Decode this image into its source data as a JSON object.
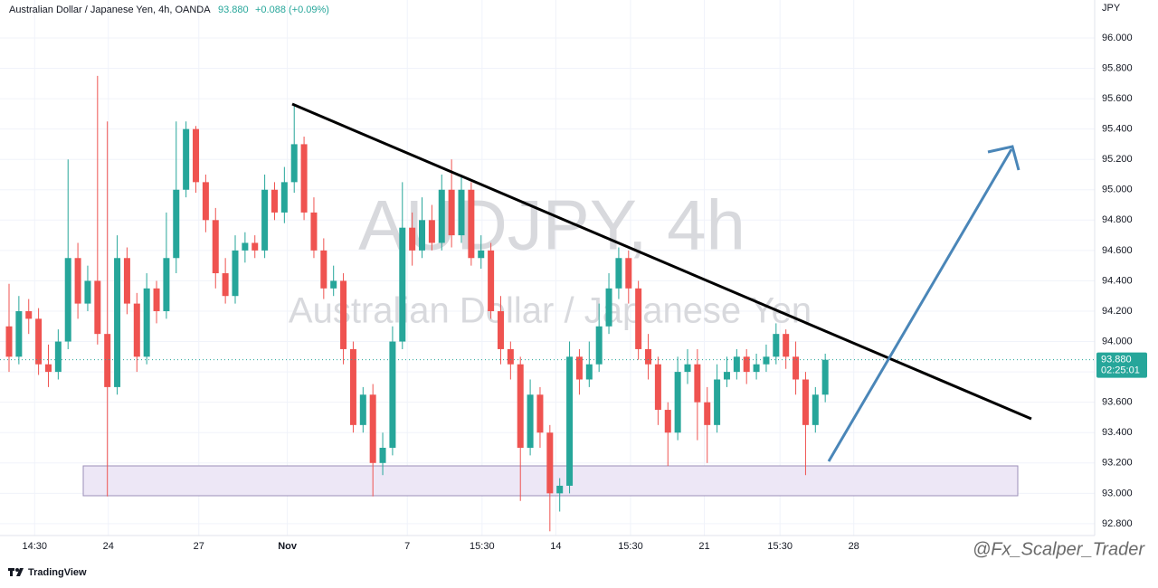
{
  "header": {
    "title": "Australian Dollar / Japanese Yen, 4h, OANDA",
    "price": "93.880",
    "change": "+0.088 (+0.09%)",
    "brand": "TradingView",
    "credit": "@Fx_Scalper_Trader"
  },
  "chart_data": {
    "type": "candlestick",
    "watermark_symbol": "AUDJPY, 4h",
    "watermark_name": "Australian Dollar / Japanese Yen",
    "currency": "JPY",
    "up_color": "#26a69a",
    "down_color": "#ef5350",
    "x": [
      0,
      1,
      2,
      3,
      4,
      5,
      6,
      7,
      8,
      9,
      10,
      11,
      12,
      13,
      14,
      15,
      16,
      17,
      18,
      19,
      20,
      21,
      22,
      23,
      24,
      25,
      26,
      27,
      28,
      29,
      30,
      31,
      32,
      33,
      34,
      35,
      36,
      37,
      38,
      39,
      40,
      41,
      42,
      43,
      44,
      45,
      46,
      47,
      48,
      49,
      50,
      51,
      52,
      53,
      54,
      55,
      56,
      57,
      58,
      59,
      60,
      61,
      62,
      63,
      64,
      65,
      66,
      67,
      68,
      69,
      70,
      71,
      72,
      73,
      74,
      75,
      76,
      77,
      78,
      79,
      80,
      81,
      82,
      83
    ],
    "open": [
      94.1,
      93.9,
      94.2,
      94.15,
      93.85,
      93.8,
      94.0,
      94.55,
      94.25,
      94.4,
      94.05,
      93.7,
      94.55,
      94.25,
      93.9,
      94.35,
      94.2,
      94.55,
      95.0,
      95.4,
      95.05,
      94.8,
      94.45,
      94.3,
      94.6,
      94.65,
      94.6,
      95.0,
      94.85,
      95.05,
      95.3,
      94.85,
      94.6,
      94.35,
      94.4,
      93.95,
      93.45,
      93.65,
      93.2,
      93.3,
      94.0,
      94.75,
      94.6,
      94.8,
      94.65,
      95.0,
      94.7,
      95.0,
      94.55,
      94.6,
      94.2,
      93.95,
      93.85,
      93.3,
      93.65,
      93.4,
      93.0,
      93.05,
      93.9,
      93.75,
      93.85,
      94.1,
      94.35,
      94.55,
      94.35,
      93.95,
      93.85,
      93.55,
      93.4,
      93.8,
      93.85,
      93.6,
      93.45,
      93.75,
      93.8,
      93.9,
      93.8,
      93.85,
      93.9,
      94.05,
      93.9,
      93.75,
      93.45,
      93.65
    ],
    "high": [
      94.38,
      94.3,
      94.28,
      94.22,
      93.98,
      94.08,
      95.2,
      94.65,
      94.5,
      95.75,
      95.45,
      94.7,
      94.62,
      94.32,
      94.45,
      94.4,
      94.85,
      95.45,
      95.45,
      95.42,
      95.1,
      94.88,
      94.55,
      94.7,
      94.72,
      94.7,
      95.1,
      95.05,
      95.15,
      95.55,
      95.35,
      94.95,
      94.68,
      94.5,
      94.45,
      94.0,
      93.7,
      93.72,
      93.4,
      94.1,
      95.05,
      94.85,
      94.95,
      94.9,
      95.1,
      95.2,
      95.1,
      95.05,
      94.7,
      94.65,
      94.3,
      94.0,
      93.9,
      93.75,
      93.7,
      93.45,
      93.1,
      94.0,
      93.95,
      94.0,
      94.25,
      94.45,
      94.62,
      94.6,
      94.4,
      94.05,
      93.9,
      93.6,
      93.9,
      93.95,
      93.95,
      93.7,
      93.85,
      93.9,
      93.95,
      93.95,
      93.92,
      93.98,
      94.12,
      94.08,
      94.0,
      93.8,
      93.7,
      93.92
    ],
    "low": [
      93.8,
      93.85,
      94.05,
      93.78,
      93.7,
      93.75,
      93.95,
      94.15,
      94.2,
      93.98,
      92.98,
      93.65,
      94.18,
      93.8,
      93.85,
      94.12,
      94.15,
      94.45,
      94.95,
      94.98,
      94.72,
      94.35,
      94.25,
      94.25,
      94.52,
      94.55,
      94.55,
      94.8,
      94.78,
      94.98,
      94.8,
      94.55,
      94.28,
      94.3,
      93.85,
      93.4,
      93.4,
      92.98,
      93.12,
      93.25,
      93.95,
      94.5,
      94.55,
      94.6,
      94.6,
      94.62,
      94.65,
      94.5,
      94.48,
      94.15,
      93.85,
      93.75,
      92.95,
      93.25,
      93.3,
      92.75,
      92.88,
      93.0,
      93.65,
      93.7,
      93.8,
      94.05,
      94.28,
      94.25,
      93.88,
      93.75,
      93.45,
      93.18,
      93.35,
      93.72,
      93.35,
      93.2,
      93.4,
      93.7,
      93.75,
      93.72,
      93.75,
      93.8,
      93.85,
      93.82,
      93.65,
      93.12,
      93.4,
      93.6
    ],
    "close": [
      93.9,
      94.2,
      94.15,
      93.85,
      93.8,
      94.0,
      94.55,
      94.25,
      94.4,
      94.05,
      93.7,
      94.55,
      94.25,
      93.9,
      94.35,
      94.2,
      94.55,
      95.0,
      95.4,
      95.05,
      94.8,
      94.45,
      94.3,
      94.6,
      94.65,
      94.6,
      95.0,
      94.85,
      95.05,
      95.3,
      94.85,
      94.6,
      94.35,
      94.4,
      93.95,
      93.45,
      93.65,
      93.2,
      93.3,
      94.0,
      94.75,
      94.6,
      94.8,
      94.65,
      95.0,
      94.7,
      95.0,
      94.55,
      94.6,
      94.2,
      93.95,
      93.85,
      93.3,
      93.65,
      93.4,
      93.0,
      93.05,
      93.9,
      93.75,
      93.85,
      94.1,
      94.35,
      94.55,
      94.35,
      93.95,
      93.85,
      93.55,
      93.4,
      93.8,
      93.85,
      93.6,
      93.45,
      93.75,
      93.8,
      93.9,
      93.8,
      93.85,
      93.9,
      94.05,
      93.9,
      93.75,
      93.45,
      93.65,
      93.88
    ],
    "last_price": {
      "value": 93.88,
      "label": "93.880"
    },
    "countdown": "02:25:01",
    "xlim": [
      -0.92,
      110.4
    ],
    "ylim": [
      92.722,
      96.25
    ],
    "xticks": [
      {
        "value": 2.6,
        "label": "14:30"
      },
      {
        "value": 10.1,
        "label": "24"
      },
      {
        "value": 19.3,
        "label": "27"
      },
      {
        "value": 28.3,
        "label": "Nov"
      },
      {
        "value": 40.5,
        "label": "7"
      },
      {
        "value": 48.1,
        "label": "15:30"
      },
      {
        "value": 55.6,
        "label": "14"
      },
      {
        "value": 63.2,
        "label": "15:30"
      },
      {
        "value": 70.7,
        "label": "21"
      },
      {
        "value": 78.4,
        "label": "15:30"
      },
      {
        "value": 85.9,
        "label": "28"
      }
    ],
    "yticks": [
      {
        "value": 96,
        "label": "96.000"
      },
      {
        "value": 95.8,
        "label": "95.800"
      },
      {
        "value": 95.6,
        "label": "95.600"
      },
      {
        "value": 95.4,
        "label": "95.400"
      },
      {
        "value": 95.2,
        "label": "95.200"
      },
      {
        "value": 95,
        "label": "95.000"
      },
      {
        "value": 94.8,
        "label": "94.800"
      },
      {
        "value": 94.6,
        "label": "94.600"
      },
      {
        "value": 94.4,
        "label": "94.400"
      },
      {
        "value": 94.2,
        "label": "94.200"
      },
      {
        "value": 94,
        "label": "94.000"
      },
      {
        "value": 93.8,
        "label": "93.800"
      },
      {
        "value": 93.6,
        "label": "93.600"
      },
      {
        "value": 93.4,
        "label": "93.400"
      },
      {
        "value": 93.2,
        "label": "93.200"
      },
      {
        "value": 93,
        "label": "93.000"
      },
      {
        "value": 92.8,
        "label": "92.800"
      }
    ]
  }
}
